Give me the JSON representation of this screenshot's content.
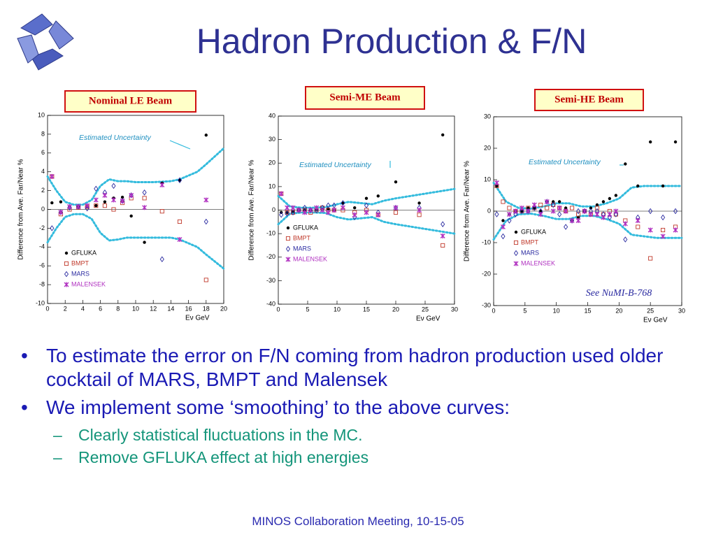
{
  "title": "Hadron Production & F/N",
  "chart_data": [
    {
      "type": "scatter",
      "title": "Nominal LE Beam",
      "x_label": "Eν GeV",
      "y_label": "Difference from Ave. Far/Near %",
      "annotation": "Estimated Uncertainty",
      "xlim": [
        0,
        20
      ],
      "ylim": [
        -10,
        10
      ],
      "xticks": [
        0,
        2,
        4,
        6,
        8,
        10,
        12,
        14,
        16,
        18,
        20
      ],
      "yticks": [
        -10,
        -8,
        -6,
        -4,
        -2,
        0,
        2,
        4,
        6,
        8,
        10
      ],
      "x": [
        0.5,
        1.5,
        2.5,
        3.5,
        4.5,
        5.5,
        6.5,
        7.5,
        8.5,
        9.5,
        11,
        13,
        15,
        18
      ],
      "series": [
        {
          "name": "GFLUKA",
          "color": "#000000",
          "values": [
            0.7,
            0.8,
            0.3,
            0.2,
            0.3,
            0.4,
            0.8,
            1.2,
            1.3,
            -0.7,
            -3.5,
            2.8,
            3.1,
            7.9
          ]
        },
        {
          "name": "BMPT",
          "color": "#c0392b",
          "values": [
            3.5,
            -0.5,
            0.0,
            0.2,
            0.3,
            0.4,
            0.4,
            0.0,
            0.7,
            1.2,
            1.2,
            -0.2,
            -1.3,
            -7.5
          ]
        },
        {
          "name": "MARS",
          "color": "#2a2aa0",
          "values": [
            -2.0,
            -0.3,
            0.2,
            0.3,
            0.1,
            2.2,
            1.8,
            2.5,
            0.9,
            1.5,
            1.8,
            -5.3,
            3.1,
            -1.3
          ]
        },
        {
          "name": "MALENSEK",
          "color": "#b030c0",
          "values": [
            3.5,
            -0.3,
            0.3,
            0.3,
            0.4,
            1.0,
            1.5,
            1.0,
            0.9,
            1.5,
            0.2,
            2.6,
            -3.2,
            1.0
          ]
        }
      ],
      "uncertainty": {
        "color": "#33bbdd",
        "x": [
          0,
          1,
          2,
          3,
          4,
          5,
          6,
          7,
          8,
          9,
          10,
          12,
          14,
          15,
          16,
          17,
          18,
          20
        ],
        "upper": [
          3.5,
          2.0,
          0.8,
          0.5,
          0.5,
          1.0,
          2.5,
          3.2,
          3.0,
          3.0,
          2.9,
          2.9,
          3.0,
          3.2,
          3.6,
          4.0,
          4.8,
          6.5
        ],
        "lower": [
          -3.5,
          -2.0,
          -0.8,
          -0.5,
          -0.5,
          -1.0,
          -2.5,
          -3.3,
          -3.2,
          -3.0,
          -3.0,
          -3.0,
          -3.0,
          -3.2,
          -3.6,
          -4.0,
          -4.8,
          -6.3
        ]
      }
    },
    {
      "type": "scatter",
      "title": "Semi-ME Beam",
      "x_label": "Eν GeV",
      "y_label": "Difference from Ave. Far/Near %",
      "annotation": "Estimated Uncertainty",
      "xlim": [
        0,
        30
      ],
      "ylim": [
        -40,
        40
      ],
      "xticks": [
        0,
        5,
        10,
        15,
        20,
        25,
        30
      ],
      "yticks": [
        -40,
        -30,
        -20,
        -10,
        0,
        10,
        20,
        30,
        40
      ],
      "x": [
        0.5,
        1.5,
        2.5,
        3.5,
        4.5,
        5.5,
        6.5,
        7.5,
        8.5,
        9.5,
        11,
        13,
        15,
        17,
        20,
        24,
        28
      ],
      "series": [
        {
          "name": "GFLUKA",
          "color": "#000000",
          "values": [
            -1,
            -1,
            -0.5,
            0,
            0,
            0,
            0.3,
            0.3,
            0.5,
            0,
            3,
            1,
            5,
            6,
            12,
            3,
            32
          ]
        },
        {
          "name": "BMPT",
          "color": "#c0392b",
          "values": [
            7,
            -1,
            -1,
            0,
            0,
            -1,
            0,
            1,
            0,
            0,
            0,
            -1,
            0,
            -2,
            -1,
            -2,
            -15
          ]
        },
        {
          "name": "MARS",
          "color": "#2a2aa0",
          "values": [
            -2,
            -1.5,
            -1,
            0,
            1,
            0,
            0,
            1,
            2,
            2,
            3,
            -3,
            2,
            -1,
            1,
            1,
            -6
          ]
        },
        {
          "name": "MALENSEK",
          "color": "#b030c0",
          "values": [
            7,
            1,
            1,
            0,
            -1,
            0,
            1,
            0,
            -1,
            0,
            1,
            -2,
            -1,
            -2,
            1,
            0,
            -11
          ]
        }
      ],
      "uncertainty": {
        "color": "#33bbdd",
        "x": [
          0,
          2,
          4,
          6,
          8,
          10,
          12,
          14,
          16,
          18,
          20,
          25,
          30
        ],
        "upper": [
          6,
          1.5,
          1,
          1,
          1.2,
          2.5,
          3.5,
          3,
          2.5,
          4,
          5,
          7,
          9
        ],
        "lower": [
          -6,
          -1.5,
          -1,
          -1,
          -1.2,
          -3,
          -4,
          -3.5,
          -3,
          -5,
          -6,
          -8,
          -10
        ]
      }
    },
    {
      "type": "scatter",
      "title": "Semi-HE Beam",
      "x_label": "Eν GeV",
      "y_label": "Difference from Ave. Far/Near %",
      "annotation": "Estimated Uncertainty",
      "note": "See NuMI-B-768",
      "xlim": [
        0,
        30
      ],
      "ylim": [
        -30,
        30
      ],
      "xticks": [
        0,
        5,
        10,
        15,
        20,
        25,
        30
      ],
      "yticks": [
        -30,
        -20,
        -10,
        0,
        10,
        20,
        30
      ],
      "x": [
        0.5,
        1.5,
        2.5,
        3.5,
        4.5,
        5.5,
        6.5,
        7.5,
        8.5,
        9.5,
        10.5,
        11.5,
        12.5,
        13.5,
        14.5,
        15.5,
        16.5,
        17.5,
        18.5,
        19.5,
        21,
        23,
        25,
        27,
        29
      ],
      "series": [
        {
          "name": "GFLUKA",
          "color": "#000000",
          "values": [
            8,
            -3,
            -1,
            0,
            0,
            1,
            1,
            0,
            3,
            3,
            3,
            1,
            -3,
            -2,
            0,
            1,
            2,
            3,
            4,
            5,
            15,
            8,
            22,
            8,
            22
          ]
        },
        {
          "name": "BMPT",
          "color": "#c0392b",
          "values": [
            8,
            3,
            1,
            0,
            0,
            1,
            1,
            2,
            1,
            2,
            1,
            0,
            1,
            -1,
            0,
            -1,
            1,
            -1,
            0,
            -1,
            -3,
            -5,
            -15,
            -6,
            -5
          ]
        },
        {
          "name": "MARS",
          "color": "#2a2aa0",
          "values": [
            -1,
            -8,
            -3,
            -1,
            0,
            0,
            1,
            0,
            3,
            2,
            -1,
            -5,
            -3,
            0,
            0,
            0,
            0,
            -1,
            -2,
            -1,
            -9,
            -2,
            0,
            -2,
            0
          ]
        },
        {
          "name": "MALENSEK",
          "color": "#b030c0",
          "values": [
            9,
            -5,
            -1,
            0,
            1,
            0,
            2,
            -1,
            3,
            0,
            1,
            0,
            -3,
            -3,
            0,
            -1,
            -1,
            -2,
            -1,
            0,
            -4,
            -3,
            -6,
            -8,
            -6
          ]
        }
      ],
      "uncertainty": {
        "color": "#33bbdd",
        "x": [
          0,
          2,
          4,
          6,
          8,
          10,
          12,
          14,
          16,
          18,
          20,
          22,
          24,
          26,
          28,
          30
        ],
        "upper": [
          9,
          3,
          1,
          0.8,
          1.5,
          2.5,
          2.5,
          1.5,
          1.5,
          2.5,
          4,
          7.5,
          8,
          8,
          8,
          8
        ],
        "lower": [
          -9,
          -3,
          -1,
          -0.8,
          -1.5,
          -2.5,
          -2.5,
          -1.5,
          -1.5,
          -2.5,
          -4,
          -7.5,
          -8,
          -8.5,
          -8.5,
          -8.5
        ]
      }
    }
  ],
  "bullets": [
    {
      "text": "To estimate the error on F/N coming from hadron production used older cocktail of MARS, BMPT and Malensek"
    },
    {
      "text": "We implement some ‘smoothing’ to the above curves:",
      "sub": [
        "Clearly statistical fluctuations in the MC.",
        "Remove GFLUKA effect at high energies"
      ]
    }
  ],
  "footer": "MINOS Collaboration Meeting, 10-15-05"
}
